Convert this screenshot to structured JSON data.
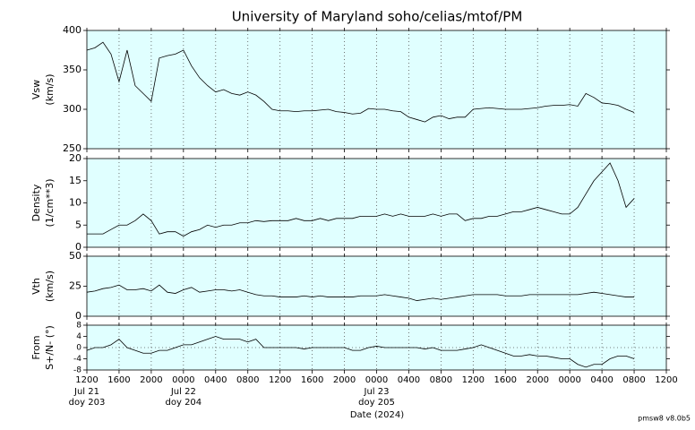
{
  "chart_data": [
    {
      "type": "line",
      "title": "University of Maryland  soho/celias/mtof/PM",
      "ylabel": [
        "Vsw",
        "(km/s)"
      ],
      "color": "#000000",
      "background": "#e0ffff",
      "xlim": [
        0,
        72
      ],
      "xticks": [
        0,
        4,
        8,
        12,
        16,
        20,
        24,
        28,
        32,
        36,
        40,
        44,
        48,
        52,
        56,
        60,
        64,
        68,
        72
      ],
      "grid": true,
      "ylim": [
        250,
        400
      ],
      "yticks": [
        250,
        300,
        350,
        400
      ],
      "x": [
        0,
        1,
        2,
        3,
        4,
        5,
        6,
        7,
        8,
        9,
        10,
        11,
        12,
        13,
        14,
        15,
        16,
        17,
        18,
        19,
        20,
        21,
        22,
        23,
        24,
        25,
        26,
        27,
        28,
        29,
        30,
        31,
        32,
        33,
        34,
        35,
        36,
        37,
        38,
        39,
        40,
        41,
        42,
        43,
        44,
        45,
        46,
        47,
        48,
        49,
        50,
        51,
        52,
        53,
        54,
        55,
        56,
        57,
        58,
        59,
        60,
        61,
        62,
        63,
        64,
        65,
        66,
        67,
        68
      ],
      "values": [
        375,
        378,
        385,
        370,
        335,
        375,
        330,
        320,
        310,
        365,
        368,
        370,
        375,
        355,
        340,
        330,
        322,
        325,
        320,
        318,
        322,
        318,
        310,
        300,
        298,
        298,
        297,
        298,
        298,
        299,
        300,
        297,
        296,
        294,
        295,
        301,
        300,
        300,
        298,
        297,
        290,
        287,
        284,
        290,
        292,
        288,
        290,
        290,
        300,
        301,
        302,
        301,
        300,
        300,
        300,
        301,
        302,
        304,
        305,
        305,
        306,
        304,
        320,
        315,
        308,
        307,
        305,
        300,
        296
      ]
    },
    {
      "type": "line",
      "ylabel": [
        "Density",
        "(1/cm**3)"
      ],
      "color": "#000000",
      "background": "#e0ffff",
      "xlim": [
        0,
        72
      ],
      "xticks": [
        0,
        4,
        8,
        12,
        16,
        20,
        24,
        28,
        32,
        36,
        40,
        44,
        48,
        52,
        56,
        60,
        64,
        68,
        72
      ],
      "grid": true,
      "ylim": [
        0,
        20
      ],
      "yticks": [
        0,
        5,
        10,
        15,
        20
      ],
      "x": [
        0,
        1,
        2,
        3,
        4,
        5,
        6,
        7,
        8,
        9,
        10,
        11,
        12,
        13,
        14,
        15,
        16,
        17,
        18,
        19,
        20,
        21,
        22,
        23,
        24,
        25,
        26,
        27,
        28,
        29,
        30,
        31,
        32,
        33,
        34,
        35,
        36,
        37,
        38,
        39,
        40,
        41,
        42,
        43,
        44,
        45,
        46,
        47,
        48,
        49,
        50,
        51,
        52,
        53,
        54,
        55,
        56,
        57,
        58,
        59,
        60,
        61,
        62,
        63,
        64,
        65,
        66,
        67,
        68
      ],
      "values": [
        3,
        3,
        3,
        4,
        5,
        5,
        6,
        7.5,
        6,
        3,
        3.5,
        3.5,
        2.5,
        3.5,
        4,
        5,
        4.5,
        5,
        5,
        5.5,
        5.5,
        6,
        5.8,
        6,
        6,
        6,
        6.5,
        6,
        6,
        6.5,
        6,
        6.5,
        6.5,
        6.5,
        7,
        7,
        7,
        7.5,
        7,
        7.5,
        7,
        7,
        7,
        7.5,
        7,
        7.5,
        7.5,
        6,
        6.5,
        6.5,
        7,
        7,
        7.5,
        8,
        8,
        8.5,
        9,
        8.5,
        8,
        7.5,
        7.5,
        9,
        12,
        15,
        17,
        19,
        15,
        9,
        11
      ]
    },
    {
      "type": "line",
      "ylabel": [
        "Vth",
        "(km/s)"
      ],
      "color": "#000000",
      "background": "#e0ffff",
      "xlim": [
        0,
        72
      ],
      "xticks": [
        0,
        4,
        8,
        12,
        16,
        20,
        24,
        28,
        32,
        36,
        40,
        44,
        48,
        52,
        56,
        60,
        64,
        68,
        72
      ],
      "grid": true,
      "ylim": [
        0,
        50
      ],
      "yticks": [
        0,
        25,
        50
      ],
      "x": [
        0,
        1,
        2,
        3,
        4,
        5,
        6,
        7,
        8,
        9,
        10,
        11,
        12,
        13,
        14,
        15,
        16,
        17,
        18,
        19,
        20,
        21,
        22,
        23,
        24,
        25,
        26,
        27,
        28,
        29,
        30,
        31,
        32,
        33,
        34,
        35,
        36,
        37,
        38,
        39,
        40,
        41,
        42,
        43,
        44,
        45,
        46,
        47,
        48,
        49,
        50,
        51,
        52,
        53,
        54,
        55,
        56,
        57,
        58,
        59,
        60,
        61,
        62,
        63,
        64,
        65,
        66,
        67,
        68
      ],
      "values": [
        20,
        21,
        23,
        24,
        26,
        22,
        22,
        23,
        21,
        26,
        20,
        19,
        22,
        24,
        20,
        21,
        22,
        22,
        21,
        22,
        20,
        18,
        17,
        17,
        16,
        16,
        16,
        17,
        16,
        17,
        16,
        16,
        16,
        16,
        17,
        17,
        17,
        18,
        17,
        16,
        15,
        13,
        14,
        15,
        14,
        15,
        16,
        17,
        18,
        18,
        18,
        18,
        17,
        17,
        17,
        18,
        18,
        18,
        18,
        18,
        18,
        18,
        19,
        20,
        19,
        18,
        17,
        16,
        16
      ]
    },
    {
      "type": "line",
      "ylabel": [
        "From",
        "S+/N- (°)"
      ],
      "xlabel": "Date (2024)",
      "note": "pmsw8 v8.0b5",
      "color": "#000000",
      "background": "#e0ffff",
      "xlim": [
        0,
        72
      ],
      "grid": true,
      "hline": 0,
      "xticks": [
        {
          "value": 0,
          "label": "1200",
          "date": "Jul 21",
          "doy": "doy 203"
        },
        {
          "value": 4,
          "label": "1600"
        },
        {
          "value": 8,
          "label": "2000"
        },
        {
          "value": 12,
          "label": "0000",
          "date": "Jul 22",
          "doy": "doy 204"
        },
        {
          "value": 16,
          "label": "0400"
        },
        {
          "value": 20,
          "label": "0800"
        },
        {
          "value": 24,
          "label": "1200"
        },
        {
          "value": 28,
          "label": "1600"
        },
        {
          "value": 32,
          "label": "2000"
        },
        {
          "value": 36,
          "label": "0000",
          "date": "Jul 23",
          "doy": "doy 205"
        },
        {
          "value": 40,
          "label": "0400"
        },
        {
          "value": 44,
          "label": "0800"
        },
        {
          "value": 48,
          "label": "1200"
        },
        {
          "value": 52,
          "label": "1600"
        },
        {
          "value": 56,
          "label": "2000"
        },
        {
          "value": 60,
          "label": "0000"
        },
        {
          "value": 64,
          "label": "0400"
        },
        {
          "value": 68,
          "label": "0800"
        },
        {
          "value": 72,
          "label": "1200"
        }
      ],
      "ylim": [
        -8,
        8
      ],
      "yticks": [
        -8,
        -4,
        0,
        4,
        8
      ],
      "x": [
        0,
        1,
        2,
        3,
        4,
        5,
        6,
        7,
        8,
        9,
        10,
        11,
        12,
        13,
        14,
        15,
        16,
        17,
        18,
        19,
        20,
        21,
        22,
        23,
        24,
        25,
        26,
        27,
        28,
        29,
        30,
        31,
        32,
        33,
        34,
        35,
        36,
        37,
        38,
        39,
        40,
        41,
        42,
        43,
        44,
        45,
        46,
        47,
        48,
        49,
        50,
        51,
        52,
        53,
        54,
        55,
        56,
        57,
        58,
        59,
        60,
        61,
        62,
        63,
        64,
        65,
        66,
        67,
        68
      ],
      "values": [
        -1,
        0,
        0,
        1,
        3,
        0,
        -1,
        -2,
        -2,
        -1,
        -1,
        0,
        1,
        1,
        2,
        3,
        4,
        3,
        3,
        3,
        2,
        3,
        0,
        0,
        0,
        0,
        0,
        -0.5,
        0,
        0,
        0,
        0,
        0,
        -1,
        -1,
        0,
        0.5,
        0,
        0,
        0,
        0,
        0,
        -0.5,
        0,
        -1,
        -1,
        -1,
        -0.5,
        0,
        1,
        0,
        -1,
        -2,
        -3,
        -3,
        -2.5,
        -3,
        -3,
        -3.5,
        -4,
        -4,
        -6,
        -7,
        -6,
        -6,
        -4,
        -3,
        -3,
        -4
      ]
    }
  ]
}
